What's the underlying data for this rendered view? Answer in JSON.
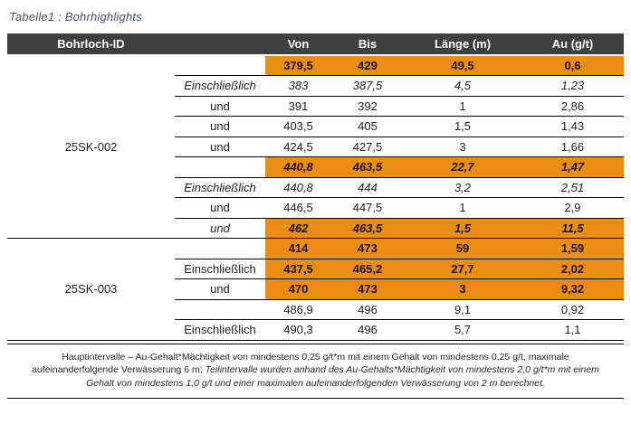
{
  "title": "Tabelle1 : Bohrhighlights",
  "colors": {
    "highlight_orange": "#EB8D13",
    "header_bg": "#3F3F3F",
    "title_color": "#44546A"
  },
  "table": {
    "headers": {
      "id": "Bohrloch-ID",
      "von": "Von",
      "bis": "Bis",
      "laenge": "Länge (m)",
      "au": "Au (g/t)"
    },
    "groups": [
      {
        "id": "25SK-002",
        "rows": [
          {
            "label": "",
            "von": "379,5",
            "bis": "429",
            "laenge": "49,5",
            "au": "0,6",
            "orange": true,
            "bold": true,
            "italic": false,
            "label_italic": false
          },
          {
            "label": "Einschließlich",
            "von": "383",
            "bis": "387,5",
            "laenge": "4,5",
            "au": "1,23",
            "orange": false,
            "bold": false,
            "italic": true,
            "label_italic": true
          },
          {
            "label": "und",
            "von": "391",
            "bis": "392",
            "laenge": "1",
            "au": "2,86",
            "orange": false,
            "bold": false,
            "italic": false,
            "label_italic": false
          },
          {
            "label": "und",
            "von": "403,5",
            "bis": "405",
            "laenge": "1,5",
            "au": "1,43",
            "orange": false,
            "bold": false,
            "italic": false,
            "label_italic": false
          },
          {
            "label": "und",
            "von": "424,5",
            "bis": "427,5",
            "laenge": "3",
            "au": "1,66",
            "orange": false,
            "bold": false,
            "italic": false,
            "label_italic": false
          },
          {
            "label": "",
            "von": "440,8",
            "bis": "463,5",
            "laenge": "22,7",
            "au": "1,47",
            "orange": true,
            "bold": true,
            "italic": true,
            "label_italic": false
          },
          {
            "label": "Einschließlich",
            "von": "440,8",
            "bis": "444",
            "laenge": "3,2",
            "au": "2,51",
            "orange": false,
            "bold": false,
            "italic": true,
            "label_italic": true
          },
          {
            "label": "und",
            "von": "446,5",
            "bis": "447,5",
            "laenge": "1",
            "au": "2,9",
            "orange": false,
            "bold": false,
            "italic": false,
            "label_italic": false
          },
          {
            "label": "und",
            "von": "462",
            "bis": "463,5",
            "laenge": "1,5",
            "au": "11,5",
            "orange": true,
            "bold": true,
            "italic": true,
            "label_italic": true
          }
        ]
      },
      {
        "id": "25SK-003",
        "rows": [
          {
            "label": "",
            "von": "414",
            "bis": "473",
            "laenge": "59",
            "au": "1,59",
            "orange": true,
            "bold": true,
            "italic": false,
            "label_italic": false
          },
          {
            "label": "Einschließlich",
            "von": "437,5",
            "bis": "465,2",
            "laenge": "27,7",
            "au": "2,02",
            "orange": true,
            "bold": true,
            "italic": false,
            "label_italic": false
          },
          {
            "label": "und",
            "von": "470",
            "bis": "473",
            "laenge": "3",
            "au": "9,32",
            "orange": true,
            "bold": true,
            "italic": false,
            "label_italic": false
          },
          {
            "label": "",
            "von": "486,9",
            "bis": "496",
            "laenge": "9,1",
            "au": "0,92",
            "orange": false,
            "bold": false,
            "italic": false,
            "label_italic": false
          },
          {
            "label": "Einschließlich",
            "von": "490,3",
            "bis": "496",
            "laenge": "5,7",
            "au": "1,1",
            "orange": false,
            "bold": false,
            "italic": false,
            "label_italic": false
          }
        ]
      }
    ]
  },
  "footnote": {
    "regular": "Hauptintervalle – Au-Gehalt*Mächtigkeit von mindestens 0,25 g/t*m mit einem Gehalt von mindestens 0,25 g/t, maximale aufeinanderfolgende Verwässerung 6 m; ",
    "italic": "Teilintervalle wurden anhand des Au-Gehalts*Mächtigkeit von mindestens 2,0 g/t*m mit einem Gehalt von mindestens 1,0 g/t und einer maximalen aufeinanderfolgenden Verwässerung von 2 m berechnet."
  }
}
